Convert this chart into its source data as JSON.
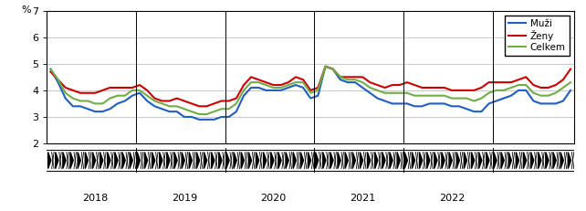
{
  "title": "",
  "ylabel": "%",
  "ylim": [
    2,
    7
  ],
  "yticks": [
    2,
    3,
    4,
    5,
    6,
    7
  ],
  "legend_labels": [
    "Muži",
    "Ženy",
    "Celkem"
  ],
  "line_colors": [
    "#1f5fbf",
    "#cc0000",
    "#70ad47"
  ],
  "line_width": 1.5,
  "year_labels": [
    "2018",
    "2019",
    "2020",
    "2021",
    "2022"
  ],
  "muzi": [
    4.8,
    4.3,
    3.7,
    3.4,
    3.4,
    3.3,
    3.2,
    3.2,
    3.3,
    3.5,
    3.6,
    3.8,
    3.9,
    3.6,
    3.4,
    3.3,
    3.2,
    3.2,
    3.0,
    3.0,
    2.9,
    2.9,
    2.9,
    3.0,
    3.0,
    3.2,
    3.8,
    4.1,
    4.1,
    4.0,
    4.0,
    4.0,
    4.1,
    4.2,
    4.1,
    3.7,
    3.8,
    4.9,
    4.8,
    4.4,
    4.3,
    4.3,
    4.1,
    3.9,
    3.7,
    3.6,
    3.5,
    3.5,
    3.5,
    3.4,
    3.4,
    3.5,
    3.5,
    3.5,
    3.4,
    3.4,
    3.3,
    3.2,
    3.2,
    3.5,
    3.6,
    3.7,
    3.8,
    4.0,
    4.0,
    3.6,
    3.5,
    3.5,
    3.5,
    3.6,
    4.0
  ],
  "zeny": [
    4.7,
    4.4,
    4.1,
    4.0,
    3.9,
    3.9,
    3.9,
    4.0,
    4.1,
    4.1,
    4.1,
    4.1,
    4.2,
    4.0,
    3.7,
    3.6,
    3.6,
    3.7,
    3.6,
    3.5,
    3.4,
    3.4,
    3.5,
    3.6,
    3.6,
    3.7,
    4.2,
    4.5,
    4.4,
    4.3,
    4.2,
    4.2,
    4.3,
    4.5,
    4.4,
    4.0,
    4.1,
    4.9,
    4.8,
    4.5,
    4.5,
    4.5,
    4.5,
    4.3,
    4.2,
    4.1,
    4.2,
    4.2,
    4.3,
    4.2,
    4.1,
    4.1,
    4.1,
    4.1,
    4.0,
    4.0,
    4.0,
    4.0,
    4.1,
    4.3,
    4.3,
    4.3,
    4.3,
    4.4,
    4.5,
    4.2,
    4.1,
    4.1,
    4.2,
    4.4,
    4.8
  ],
  "celkem": [
    4.8,
    4.4,
    3.9,
    3.7,
    3.6,
    3.6,
    3.5,
    3.5,
    3.7,
    3.8,
    3.8,
    4.0,
    4.0,
    3.8,
    3.6,
    3.5,
    3.4,
    3.4,
    3.3,
    3.2,
    3.1,
    3.1,
    3.2,
    3.3,
    3.3,
    3.5,
    4.0,
    4.3,
    4.3,
    4.2,
    4.1,
    4.1,
    4.2,
    4.3,
    4.3,
    3.9,
    4.0,
    4.9,
    4.8,
    4.5,
    4.4,
    4.4,
    4.3,
    4.1,
    4.0,
    3.9,
    3.9,
    3.9,
    3.9,
    3.8,
    3.8,
    3.8,
    3.8,
    3.8,
    3.7,
    3.7,
    3.7,
    3.6,
    3.7,
    3.9,
    4.0,
    4.0,
    4.1,
    4.2,
    4.2,
    3.9,
    3.8,
    3.8,
    3.9,
    4.1,
    4.3
  ],
  "n_points": 71,
  "year_positions": [
    6,
    18,
    30,
    42,
    54
  ],
  "separator_positions": [
    11.5,
    23.5,
    35.5,
    47.5,
    59.5
  ],
  "background_color": "#ffffff",
  "grid_color": "#c0c0c0",
  "spine_color": "#000000"
}
